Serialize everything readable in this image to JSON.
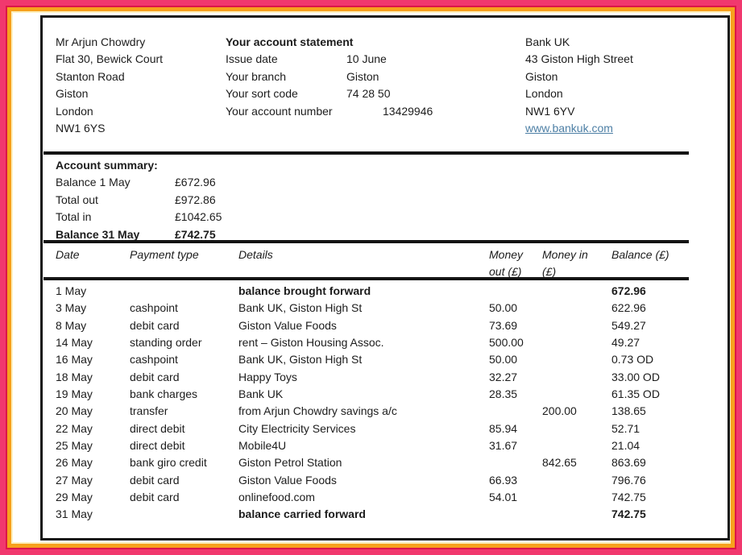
{
  "statement": {
    "customer_address": [
      "Mr Arjun Chowdry",
      "Flat 30, Bewick Court",
      "Stanton Road",
      "Giston",
      "London",
      "NW1 6YS"
    ],
    "header": {
      "title": "Your account statement",
      "fields": [
        {
          "label": "Issue date",
          "value": "10 June"
        },
        {
          "label": "Your branch",
          "value": "Giston"
        },
        {
          "label": "Your sort code",
          "value": "74 28 50"
        },
        {
          "label": "Your account number",
          "value": "13429946"
        }
      ]
    },
    "bank": {
      "lines": [
        "Bank UK",
        "43 Giston High Street",
        "Giston",
        "London",
        "NW1 6YV"
      ],
      "website": "www.bankuk.com"
    },
    "summary": {
      "title": "Account summary:",
      "rows": [
        {
          "label": "Balance 1 May",
          "value": "£672.96",
          "emphasis": false
        },
        {
          "label": "Total out",
          "value": "£972.86",
          "emphasis": false
        },
        {
          "label": "Total in",
          "value": "£1042.65",
          "emphasis": false
        },
        {
          "label": "Balance 31 May",
          "value": "£742.75",
          "emphasis": true
        }
      ]
    },
    "table": {
      "columns": [
        "Date",
        "Payment type",
        "Details",
        "Money\nout (£)",
        "Money in\n(£)",
        "Balance (£)"
      ],
      "rows": [
        {
          "date": "1 May",
          "type": "",
          "details": "balance brought forward",
          "out": "",
          "in": "",
          "balance": "672.96",
          "emphasis": true
        },
        {
          "date": "3 May",
          "type": "cashpoint",
          "details": "Bank UK, Giston High St",
          "out": "50.00",
          "in": "",
          "balance": "622.96",
          "emphasis": false
        },
        {
          "date": "8 May",
          "type": "debit card",
          "details": "Giston Value Foods",
          "out": "73.69",
          "in": "",
          "balance": "549.27",
          "emphasis": false
        },
        {
          "date": "14 May",
          "type": "standing order",
          "details": "rent – Giston Housing Assoc.",
          "out": "500.00",
          "in": "",
          "balance": "49.27",
          "emphasis": false
        },
        {
          "date": "16 May",
          "type": "cashpoint",
          "details": "Bank UK, Giston High St",
          "out": "50.00",
          "in": "",
          "balance": "0.73 OD",
          "emphasis": false
        },
        {
          "date": "18 May",
          "type": "debit card",
          "details": "Happy Toys",
          "out": "32.27",
          "in": "",
          "balance": "33.00 OD",
          "emphasis": false
        },
        {
          "date": "19 May",
          "type": "bank charges",
          "details": "Bank UK",
          "out": "28.35",
          "in": "",
          "balance": "61.35 OD",
          "emphasis": false
        },
        {
          "date": "20 May",
          "type": "transfer",
          "details": "from Arjun Chowdry savings a/c",
          "out": "",
          "in": "200.00",
          "balance": "138.65",
          "emphasis": false
        },
        {
          "date": "22 May",
          "type": "direct debit",
          "details": "City Electricity Services",
          "out": "85.94",
          "in": "",
          "balance": "52.71",
          "emphasis": false
        },
        {
          "date": "25 May",
          "type": "direct debit",
          "details": "Mobile4U",
          "out": "31.67",
          "in": "",
          "balance": "21.04",
          "emphasis": false
        },
        {
          "date": "26 May",
          "type": "bank giro credit",
          "details": "Giston Petrol Station",
          "out": "",
          "in": "842.65",
          "balance": "863.69",
          "emphasis": false
        },
        {
          "date": "27 May",
          "type": "debit card",
          "details": "Giston Value Foods",
          "out": "66.93",
          "in": "",
          "balance": "796.76",
          "emphasis": false
        },
        {
          "date": "29 May",
          "type": "debit card",
          "details": "onlinefood.com",
          "out": "54.01",
          "in": "",
          "balance": "742.75",
          "emphasis": false
        },
        {
          "date": "31 May",
          "type": "",
          "details": "balance carried forward",
          "out": "",
          "in": "",
          "balance": "742.75",
          "emphasis": true
        }
      ]
    },
    "colors": {
      "frame_pink": "#f1386e",
      "frame_crimson": "#dc1747",
      "frame_orange": "#f7a11d",
      "frame_cream": "#fdf0bf",
      "link_blue": "#4d7fa5",
      "rule_black": "#141414",
      "text": "#1c1c1c"
    }
  }
}
